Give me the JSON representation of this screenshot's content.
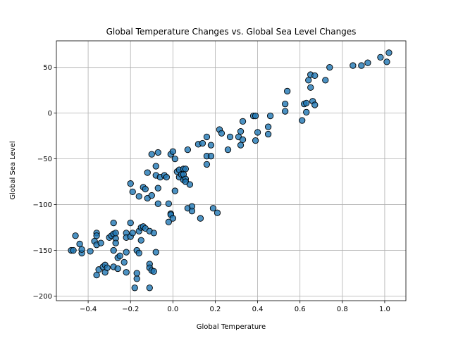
{
  "chart_data": {
    "type": "scatter",
    "title": "Global Temperature Changes vs. Global Sea Level Changes",
    "xlabel": "Global Temperature",
    "ylabel": "Global Sea Level",
    "xlim": [
      -0.55,
      1.1
    ],
    "ylim": [
      -205,
      79
    ],
    "xticks": [
      -0.4,
      -0.2,
      0.0,
      0.2,
      0.4,
      0.6,
      0.8,
      1.0
    ],
    "xtick_labels": [
      "−0.4",
      "−0.2",
      "0.0",
      "0.2",
      "0.4",
      "0.6",
      "0.8",
      "1.0"
    ],
    "yticks": [
      -200,
      -150,
      -100,
      -50,
      0,
      50
    ],
    "ytick_labels": [
      "−200",
      "−150",
      "−100",
      "−50",
      "0",
      "50"
    ],
    "grid": true,
    "marker_color": "#1f77b4",
    "marker_edge": "#000000",
    "points": [
      [
        -0.48,
        -150
      ],
      [
        -0.47,
        -150
      ],
      [
        -0.46,
        -134
      ],
      [
        -0.44,
        -143
      ],
      [
        -0.43,
        -153
      ],
      [
        -0.43,
        -149
      ],
      [
        -0.39,
        -151
      ],
      [
        -0.37,
        -140
      ],
      [
        -0.36,
        -131
      ],
      [
        -0.36,
        -134
      ],
      [
        -0.36,
        -144
      ],
      [
        -0.36,
        -177
      ],
      [
        -0.35,
        -171
      ],
      [
        -0.34,
        -142
      ],
      [
        -0.33,
        -168
      ],
      [
        -0.32,
        -174
      ],
      [
        -0.32,
        -166
      ],
      [
        -0.31,
        -169
      ],
      [
        -0.3,
        -136
      ],
      [
        -0.29,
        -134
      ],
      [
        -0.28,
        -132
      ],
      [
        -0.28,
        -120
      ],
      [
        -0.28,
        -150
      ],
      [
        -0.28,
        -168
      ],
      [
        -0.27,
        -137
      ],
      [
        -0.27,
        -142
      ],
      [
        -0.27,
        -131
      ],
      [
        -0.26,
        -170
      ],
      [
        -0.26,
        -158
      ],
      [
        -0.25,
        -156
      ],
      [
        -0.23,
        -163
      ],
      [
        -0.22,
        -174
      ],
      [
        -0.22,
        -131
      ],
      [
        -0.22,
        -136
      ],
      [
        -0.22,
        -152
      ],
      [
        -0.2,
        -120
      ],
      [
        -0.2,
        -135
      ],
      [
        -0.2,
        -77
      ],
      [
        -0.19,
        -86
      ],
      [
        -0.19,
        -131
      ],
      [
        -0.18,
        -191
      ],
      [
        -0.17,
        -150
      ],
      [
        -0.17,
        -181
      ],
      [
        -0.17,
        -175
      ],
      [
        -0.16,
        -91
      ],
      [
        -0.16,
        -153
      ],
      [
        -0.16,
        -129
      ],
      [
        -0.15,
        -139
      ],
      [
        -0.15,
        -125
      ],
      [
        -0.14,
        -81
      ],
      [
        -0.14,
        -124
      ],
      [
        -0.13,
        -83
      ],
      [
        -0.13,
        -126
      ],
      [
        -0.12,
        -65
      ],
      [
        -0.12,
        -93
      ],
      [
        -0.11,
        -129
      ],
      [
        -0.11,
        -165
      ],
      [
        -0.11,
        -169
      ],
      [
        -0.11,
        -191
      ],
      [
        -0.1,
        -90
      ],
      [
        -0.1,
        -172
      ],
      [
        -0.1,
        -45
      ],
      [
        -0.09,
        -131
      ],
      [
        -0.09,
        -173
      ],
      [
        -0.08,
        -152
      ],
      [
        -0.08,
        -58
      ],
      [
        -0.08,
        -68
      ],
      [
        -0.07,
        -43
      ],
      [
        -0.07,
        -82
      ],
      [
        -0.07,
        -99
      ],
      [
        -0.06,
        -70
      ],
      [
        -0.04,
        -68
      ],
      [
        -0.03,
        -70
      ],
      [
        -0.02,
        -99
      ],
      [
        -0.02,
        -119
      ],
      [
        -0.01,
        -110
      ],
      [
        -0.01,
        -45
      ],
      [
        -0.01,
        -111
      ],
      [
        0.0,
        -42
      ],
      [
        0.0,
        -115
      ],
      [
        0.01,
        -85
      ],
      [
        0.01,
        -50
      ],
      [
        0.02,
        -64
      ],
      [
        0.03,
        -70
      ],
      [
        0.03,
        -62
      ],
      [
        0.04,
        -67
      ],
      [
        0.05,
        -73
      ],
      [
        0.05,
        -67
      ],
      [
        0.05,
        -61
      ],
      [
        0.06,
        -61
      ],
      [
        0.06,
        -72
      ],
      [
        0.06,
        -75
      ],
      [
        0.07,
        -104
      ],
      [
        0.07,
        -40
      ],
      [
        0.08,
        -78
      ],
      [
        0.09,
        -102
      ],
      [
        0.09,
        -107
      ],
      [
        0.12,
        -34
      ],
      [
        0.13,
        -115
      ],
      [
        0.14,
        -33
      ],
      [
        0.16,
        -47
      ],
      [
        0.16,
        -56
      ],
      [
        0.16,
        -26
      ],
      [
        0.18,
        -47
      ],
      [
        0.18,
        -35
      ],
      [
        0.19,
        -104
      ],
      [
        0.21,
        -109
      ],
      [
        0.22,
        -18
      ],
      [
        0.23,
        -22
      ],
      [
        0.26,
        -40
      ],
      [
        0.27,
        -26
      ],
      [
        0.31,
        -26
      ],
      [
        0.32,
        -35
      ],
      [
        0.32,
        -20
      ],
      [
        0.33,
        -29
      ],
      [
        0.33,
        -9
      ],
      [
        0.38,
        -3
      ],
      [
        0.39,
        -30
      ],
      [
        0.39,
        -3
      ],
      [
        0.4,
        -21
      ],
      [
        0.45,
        -23
      ],
      [
        0.45,
        -15
      ],
      [
        0.46,
        -3
      ],
      [
        0.53,
        2
      ],
      [
        0.53,
        10
      ],
      [
        0.54,
        24
      ],
      [
        0.61,
        -8
      ],
      [
        0.62,
        10
      ],
      [
        0.63,
        11
      ],
      [
        0.63,
        1
      ],
      [
        0.64,
        36
      ],
      [
        0.65,
        42
      ],
      [
        0.65,
        28
      ],
      [
        0.66,
        13
      ],
      [
        0.67,
        9
      ],
      [
        0.67,
        41
      ],
      [
        0.72,
        36
      ],
      [
        0.74,
        50
      ],
      [
        0.85,
        52
      ],
      [
        0.89,
        52
      ],
      [
        0.92,
        55
      ],
      [
        0.98,
        61
      ],
      [
        1.01,
        56
      ],
      [
        1.02,
        66
      ]
    ]
  }
}
